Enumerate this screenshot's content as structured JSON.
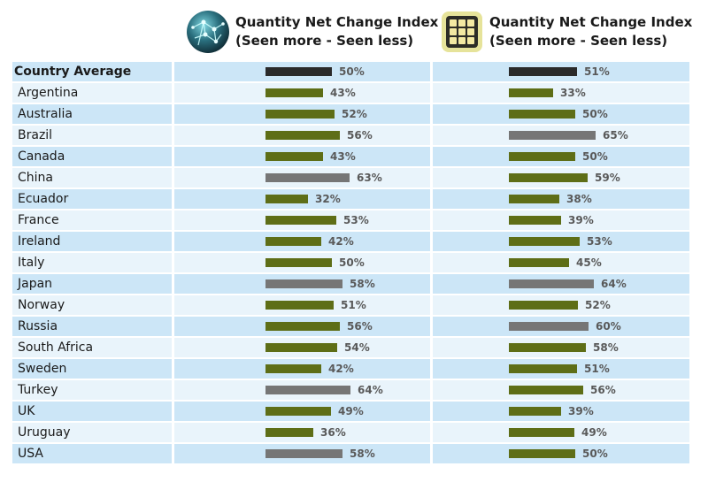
{
  "columns": [
    {
      "title_line1": "Quantity Net Change Index",
      "title_line2": "(Seen more - Seen less)",
      "icon": "globe-network-icon"
    },
    {
      "title_line1": "Quantity Net Change Index",
      "title_line2": "(Seen more - Seen less)",
      "icon": "grid-tile-icon"
    }
  ],
  "colors": {
    "row_odd": "#cce6f7",
    "row_even": "#e9f4fb",
    "bar_green": "#5e6e17",
    "bar_gray": "#767676",
    "bar_black": "#2a2a2a"
  },
  "chart_data": [
    {
      "type": "bar",
      "orientation": "horizontal",
      "title": "Quantity Net Change Index (Seen more - Seen less)",
      "categories": [
        "Country Average",
        "Argentina",
        "Australia",
        "Brazil",
        "Canada",
        "China",
        "Ecuador",
        "France",
        "Ireland",
        "Italy",
        "Japan",
        "Norway",
        "Russia",
        "South Africa",
        "Sweden",
        "Turkey",
        "UK",
        "Uruguay",
        "USA"
      ],
      "values": [
        50,
        43,
        52,
        56,
        43,
        63,
        32,
        53,
        42,
        50,
        58,
        51,
        56,
        54,
        42,
        64,
        49,
        36,
        58
      ],
      "labels": [
        "50%",
        "43%",
        "52%",
        "56%",
        "43%",
        "63%",
        "32%",
        "53%",
        "42%",
        "50%",
        "58%",
        "51%",
        "56%",
        "54%",
        "42%",
        "64%",
        "49%",
        "36%",
        "58%"
      ],
      "bar_styles": [
        "black",
        "green",
        "green",
        "green",
        "green",
        "gray",
        "green",
        "green",
        "green",
        "green",
        "gray",
        "green",
        "green",
        "green",
        "green",
        "gray",
        "green",
        "green",
        "gray"
      ]
    },
    {
      "type": "bar",
      "orientation": "horizontal",
      "title": "Quantity Net Change Index (Seen more - Seen less)",
      "categories": [
        "Country Average",
        "Argentina",
        "Australia",
        "Brazil",
        "Canada",
        "China",
        "Ecuador",
        "France",
        "Ireland",
        "Italy",
        "Japan",
        "Norway",
        "Russia",
        "South Africa",
        "Sweden",
        "Turkey",
        "UK",
        "Uruguay",
        "USA"
      ],
      "values": [
        51,
        33,
        50,
        65,
        50,
        59,
        38,
        39,
        53,
        45,
        64,
        52,
        60,
        58,
        51,
        56,
        39,
        49,
        50
      ],
      "labels": [
        "51%",
        "33%",
        "50%",
        "65%",
        "50%",
        "59%",
        "38%",
        "39%",
        "53%",
        "45%",
        "64%",
        "52%",
        "60%",
        "58%",
        "51%",
        "56%",
        "39%",
        "49%",
        "50%"
      ],
      "bar_styles": [
        "black",
        "green",
        "green",
        "gray",
        "green",
        "green",
        "green",
        "green",
        "green",
        "green",
        "gray",
        "green",
        "gray",
        "green",
        "green",
        "green",
        "green",
        "green",
        "green"
      ]
    }
  ]
}
